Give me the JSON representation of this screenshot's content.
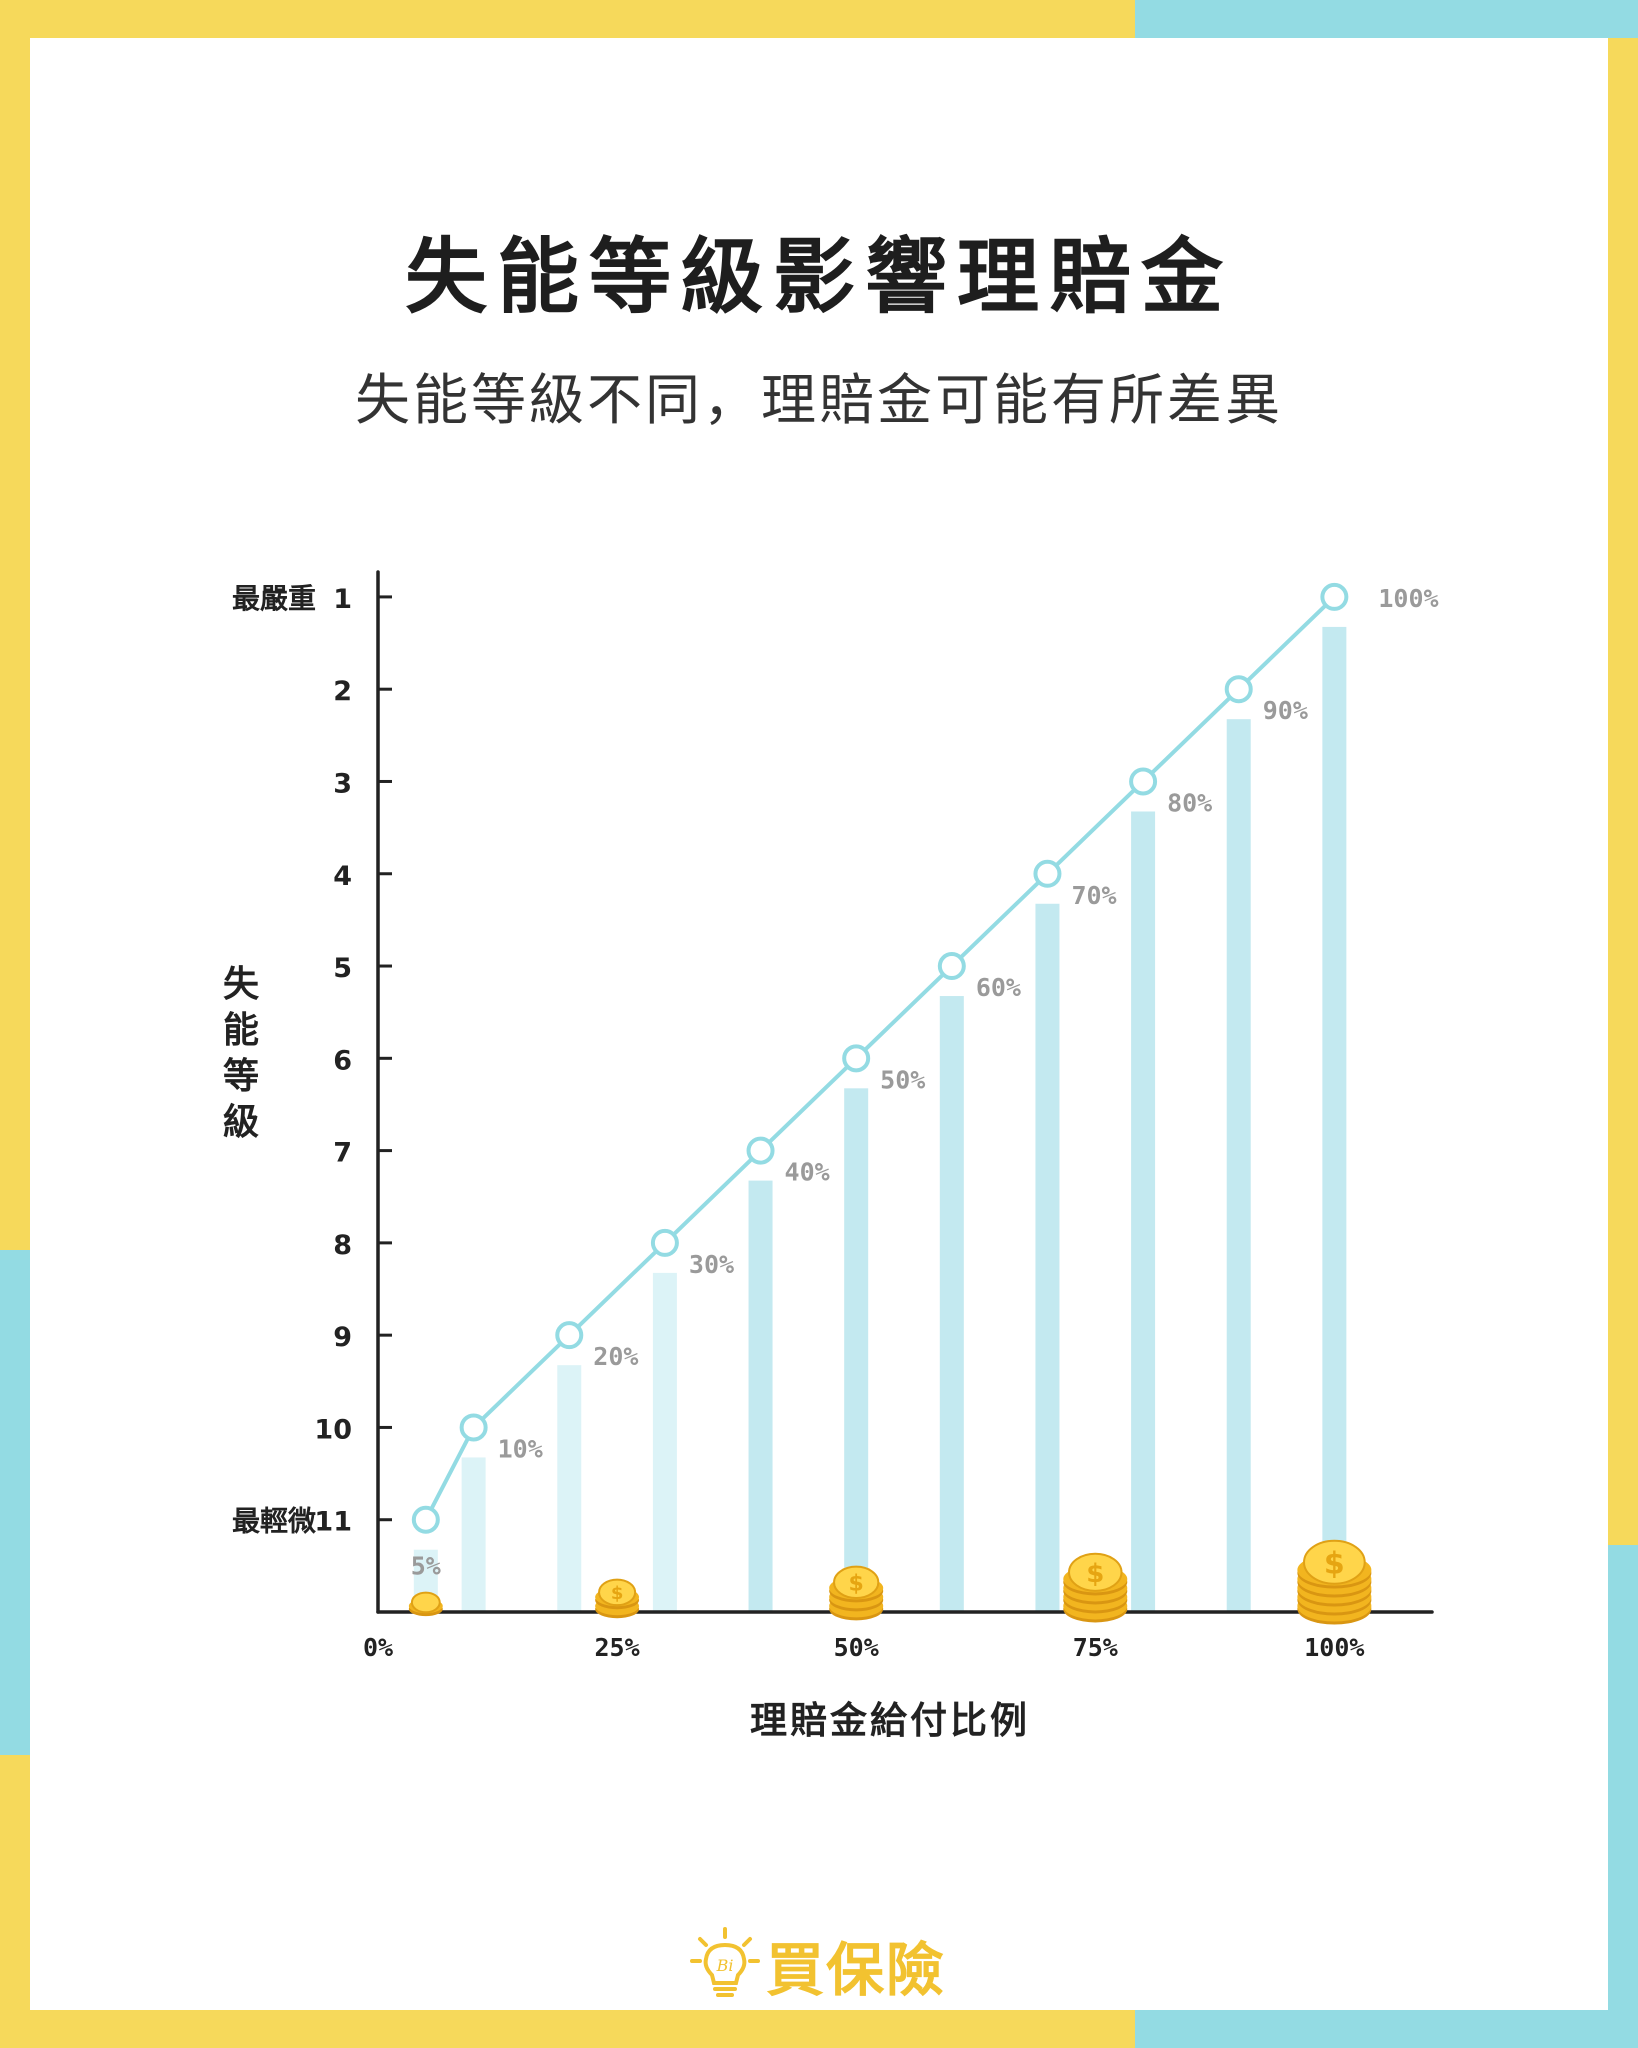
{
  "page": {
    "title": "失能等級影響理賠金",
    "subtitle": "失能等級不同，理賠金可能有所差異",
    "brand": "買保險",
    "colors": {
      "frame_yellow": "#f6d95b",
      "frame_cyan": "#93dbe3",
      "bar": "#c3e9f0",
      "bar_light": "#dcf3f7",
      "line": "#93dbe3",
      "value_label": "#9a9a9a",
      "axis": "#222222",
      "coin": "#f2b51f"
    },
    "icons": [
      "lightbulb-icon",
      "coin-stack-icon"
    ]
  },
  "chart_data": {
    "type": "line",
    "overlay_type": "bar",
    "xlabel": "理賠金給付比例",
    "ylabel": "失能等級",
    "x_ticks": [
      "0%",
      "25%",
      "50%",
      "75%",
      "100%"
    ],
    "xlim": [
      0,
      110
    ],
    "y_ticks": [
      {
        "value": 1,
        "label": "1",
        "desc": "最嚴重"
      },
      {
        "value": 2,
        "label": "2",
        "desc": ""
      },
      {
        "value": 3,
        "label": "3",
        "desc": ""
      },
      {
        "value": 4,
        "label": "4",
        "desc": ""
      },
      {
        "value": 5,
        "label": "5",
        "desc": ""
      },
      {
        "value": 6,
        "label": "6",
        "desc": ""
      },
      {
        "value": 7,
        "label": "7",
        "desc": ""
      },
      {
        "value": 8,
        "label": "8",
        "desc": ""
      },
      {
        "value": 9,
        "label": "9",
        "desc": ""
      },
      {
        "value": 10,
        "label": "10",
        "desc": ""
      },
      {
        "value": 11,
        "label": "11",
        "desc": "最輕微"
      }
    ],
    "ylim": [
      0.6,
      12
    ],
    "y_inverted": true,
    "points": [
      {
        "x": 5,
        "level": 11,
        "label": "5%"
      },
      {
        "x": 10,
        "level": 10,
        "label": "10%"
      },
      {
        "x": 20,
        "level": 9,
        "label": "20%"
      },
      {
        "x": 30,
        "level": 8,
        "label": "30%"
      },
      {
        "x": 40,
        "level": 7,
        "label": "40%"
      },
      {
        "x": 50,
        "level": 6,
        "label": "50%"
      },
      {
        "x": 60,
        "level": 5,
        "label": "60%"
      },
      {
        "x": 70,
        "level": 4,
        "label": "70%"
      },
      {
        "x": 80,
        "level": 3,
        "label": "80%"
      },
      {
        "x": 90,
        "level": 2,
        "label": "90%"
      },
      {
        "x": 100,
        "level": 1,
        "label": "100%"
      }
    ],
    "coin_stacks": [
      {
        "x": 5,
        "count": 1
      },
      {
        "x": 25,
        "count": 2
      },
      {
        "x": 50,
        "count": 3
      },
      {
        "x": 75,
        "count": 4
      },
      {
        "x": 100,
        "count": 5
      }
    ],
    "grid": false,
    "legend": "none"
  }
}
